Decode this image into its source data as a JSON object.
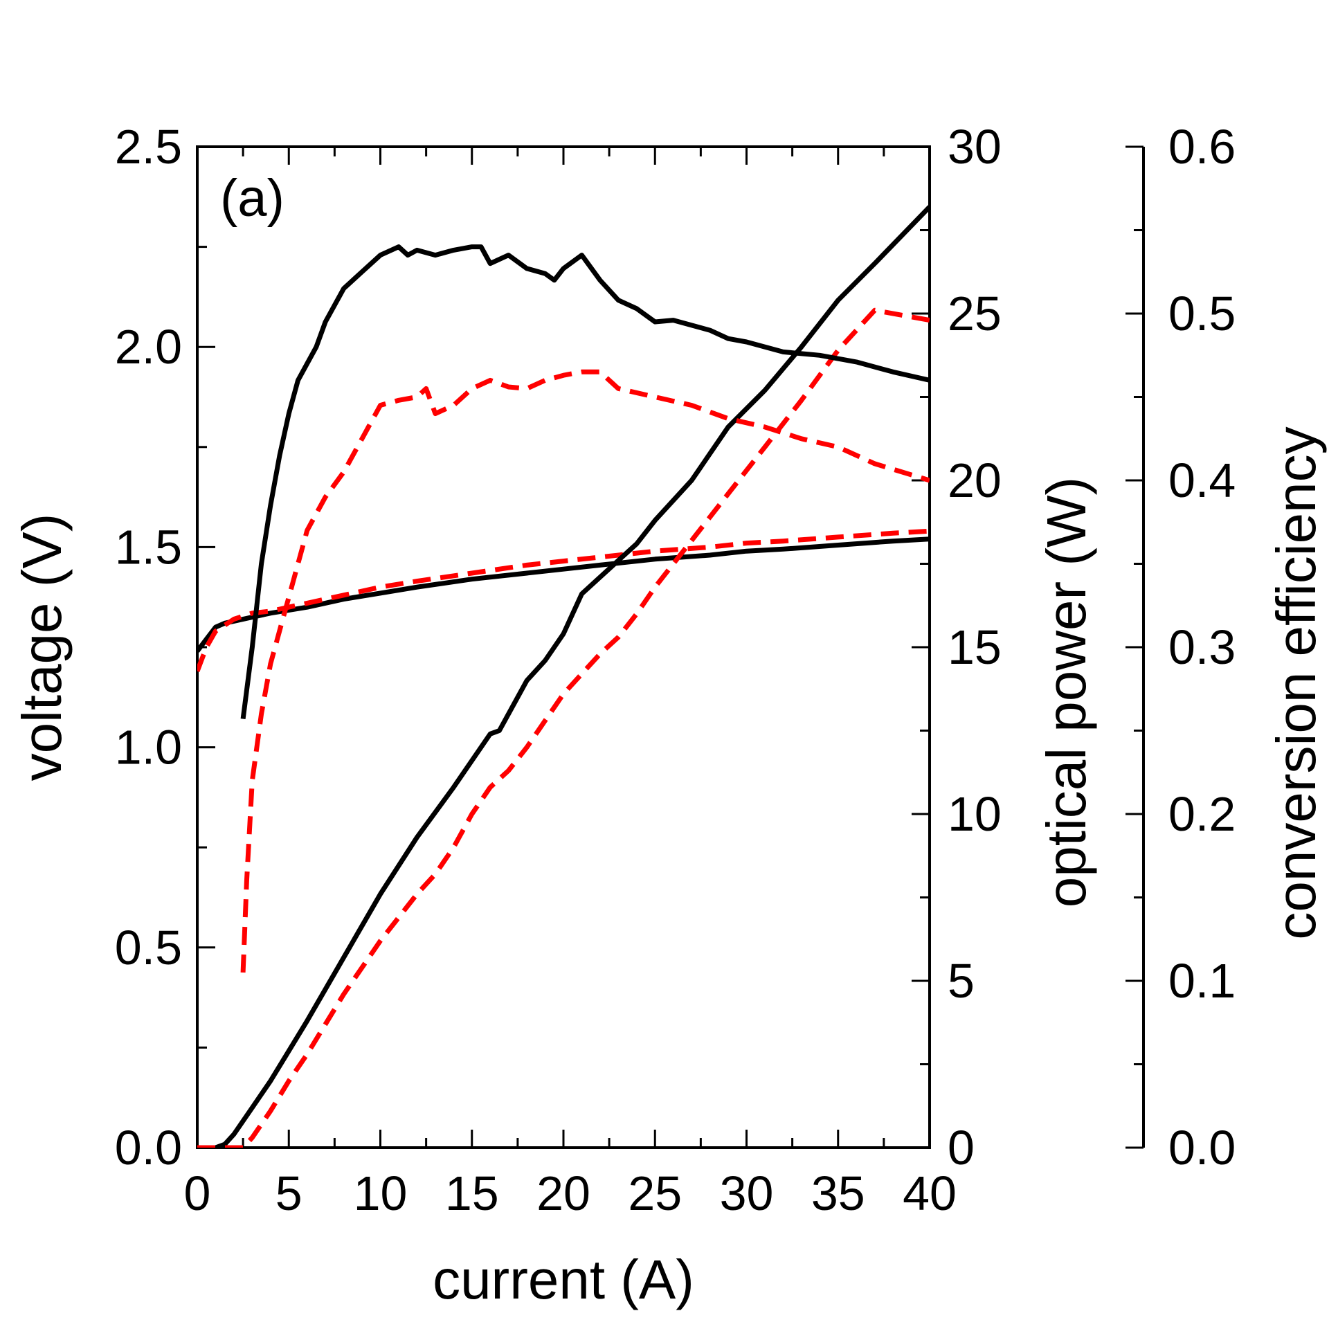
{
  "chart_data": {
    "type": "line",
    "panel_label": "(a)",
    "xlabel": "current (A)",
    "ylabel_left": "voltage (V)",
    "ylabel_right1": "optical power (W)",
    "ylabel_right2": "conversion efficiency",
    "xlim": [
      0,
      40
    ],
    "ylim_left": [
      0,
      2.5
    ],
    "ylim_right1": [
      0,
      30
    ],
    "ylim_right2": [
      0,
      0.6
    ],
    "x_ticks": [
      "0",
      "5",
      "10",
      "15",
      "20",
      "25",
      "30",
      "35",
      "40"
    ],
    "y_left_ticks": [
      "0.0",
      "0.5",
      "1.0",
      "1.5",
      "2.0",
      "2.5"
    ],
    "y_right1_ticks": [
      "0",
      "5",
      "10",
      "15",
      "20",
      "25",
      "30"
    ],
    "y_right2_ticks": [
      "0.0",
      "0.1",
      "0.2",
      "0.3",
      "0.4",
      "0.5",
      "0.6"
    ],
    "grid": false,
    "colors": {
      "black": "#000000",
      "red": "#ff0000"
    },
    "series": [
      {
        "axis": "voltage",
        "color": "#000000",
        "dash": "solid",
        "x": [
          0,
          0.5,
          1,
          1.5,
          2,
          3,
          4,
          6,
          8,
          10,
          12,
          15,
          18,
          20,
          22,
          25,
          28,
          30,
          32,
          35,
          38,
          40
        ],
        "y": [
          1.24,
          1.27,
          1.3,
          1.31,
          1.315,
          1.325,
          1.335,
          1.35,
          1.37,
          1.385,
          1.4,
          1.42,
          1.435,
          1.445,
          1.455,
          1.47,
          1.48,
          1.49,
          1.495,
          1.505,
          1.515,
          1.52
        ]
      },
      {
        "axis": "voltage",
        "color": "#ff0000",
        "dash": "dashed",
        "x": [
          0,
          0.5,
          1,
          2,
          3,
          4,
          6,
          8,
          10,
          12,
          15,
          18,
          20,
          22,
          25,
          28,
          30,
          32,
          35,
          38,
          40
        ],
        "y": [
          1.19,
          1.25,
          1.29,
          1.32,
          1.335,
          1.34,
          1.36,
          1.38,
          1.4,
          1.415,
          1.435,
          1.455,
          1.465,
          1.475,
          1.49,
          1.5,
          1.51,
          1.515,
          1.525,
          1.535,
          1.54
        ]
      },
      {
        "axis": "optical_power",
        "color": "#000000",
        "dash": "solid",
        "x": [
          0,
          1,
          1.5,
          2,
          3,
          4,
          5,
          6,
          8,
          10,
          12,
          14,
          16,
          16.5,
          18,
          19,
          20,
          21,
          22,
          23,
          24,
          25,
          27,
          29,
          31,
          33,
          35,
          37,
          40
        ],
        "y": [
          0,
          0,
          0.1,
          0.4,
          1.2,
          2.0,
          2.9,
          3.8,
          5.7,
          7.6,
          9.3,
          10.8,
          12.4,
          12.5,
          14.0,
          14.6,
          15.4,
          16.6,
          17.1,
          17.6,
          18.1,
          18.8,
          20.0,
          21.6,
          22.7,
          24.0,
          25.4,
          26.5,
          28.2
        ]
      },
      {
        "axis": "optical_power",
        "color": "#ff0000",
        "dash": "dashed",
        "x": [
          0,
          2.5,
          3,
          4,
          5,
          6,
          8,
          10,
          12,
          13,
          14,
          15,
          16,
          17,
          18,
          20,
          22,
          23,
          24,
          25,
          27,
          29,
          31,
          33,
          35,
          37,
          40
        ],
        "y": [
          0,
          0,
          0.3,
          1.1,
          2.0,
          2.8,
          4.6,
          6.2,
          7.6,
          8.2,
          9.0,
          10.0,
          10.8,
          11.3,
          12.0,
          13.6,
          14.8,
          15.3,
          16.0,
          16.8,
          18.2,
          19.6,
          21.0,
          22.4,
          23.9,
          25.1,
          24.8
        ]
      },
      {
        "axis": "efficiency",
        "color": "#000000",
        "dash": "solid",
        "x": [
          2.5,
          3,
          3.5,
          4,
          4.5,
          5,
          5.5,
          6,
          6.5,
          7,
          8,
          9,
          10,
          11,
          11.5,
          12,
          13,
          14,
          15,
          15.5,
          16,
          17,
          18,
          19,
          19.5,
          20,
          21,
          22,
          23,
          24,
          25,
          26,
          27,
          28,
          29,
          30,
          32,
          34,
          36,
          38,
          40
        ],
        "y": [
          0.257,
          0.3,
          0.35,
          0.385,
          0.415,
          0.44,
          0.46,
          0.47,
          0.48,
          0.495,
          0.515,
          0.525,
          0.535,
          0.54,
          0.535,
          0.538,
          0.535,
          0.538,
          0.54,
          0.54,
          0.53,
          0.535,
          0.527,
          0.524,
          0.52,
          0.527,
          0.535,
          0.52,
          0.508,
          0.503,
          0.495,
          0.496,
          0.493,
          0.49,
          0.485,
          0.483,
          0.477,
          0.475,
          0.471,
          0.465,
          0.46
        ]
      },
      {
        "axis": "efficiency",
        "color": "#ff0000",
        "dash": "dashed",
        "x": [
          2.5,
          2.7,
          3,
          3.5,
          4,
          4.5,
          5,
          6,
          7,
          8,
          9,
          10,
          11,
          12,
          12.5,
          13,
          14,
          15,
          16,
          16.5,
          17,
          18,
          19,
          20,
          21,
          22,
          23,
          25,
          27,
          29,
          31,
          33,
          35,
          37,
          40
        ],
        "y": [
          0.105,
          0.16,
          0.22,
          0.26,
          0.29,
          0.31,
          0.33,
          0.37,
          0.39,
          0.405,
          0.425,
          0.445,
          0.448,
          0.45,
          0.455,
          0.44,
          0.445,
          0.455,
          0.46,
          0.458,
          0.456,
          0.455,
          0.46,
          0.463,
          0.465,
          0.465,
          0.455,
          0.45,
          0.445,
          0.437,
          0.432,
          0.425,
          0.42,
          0.41,
          0.4
        ]
      }
    ]
  }
}
